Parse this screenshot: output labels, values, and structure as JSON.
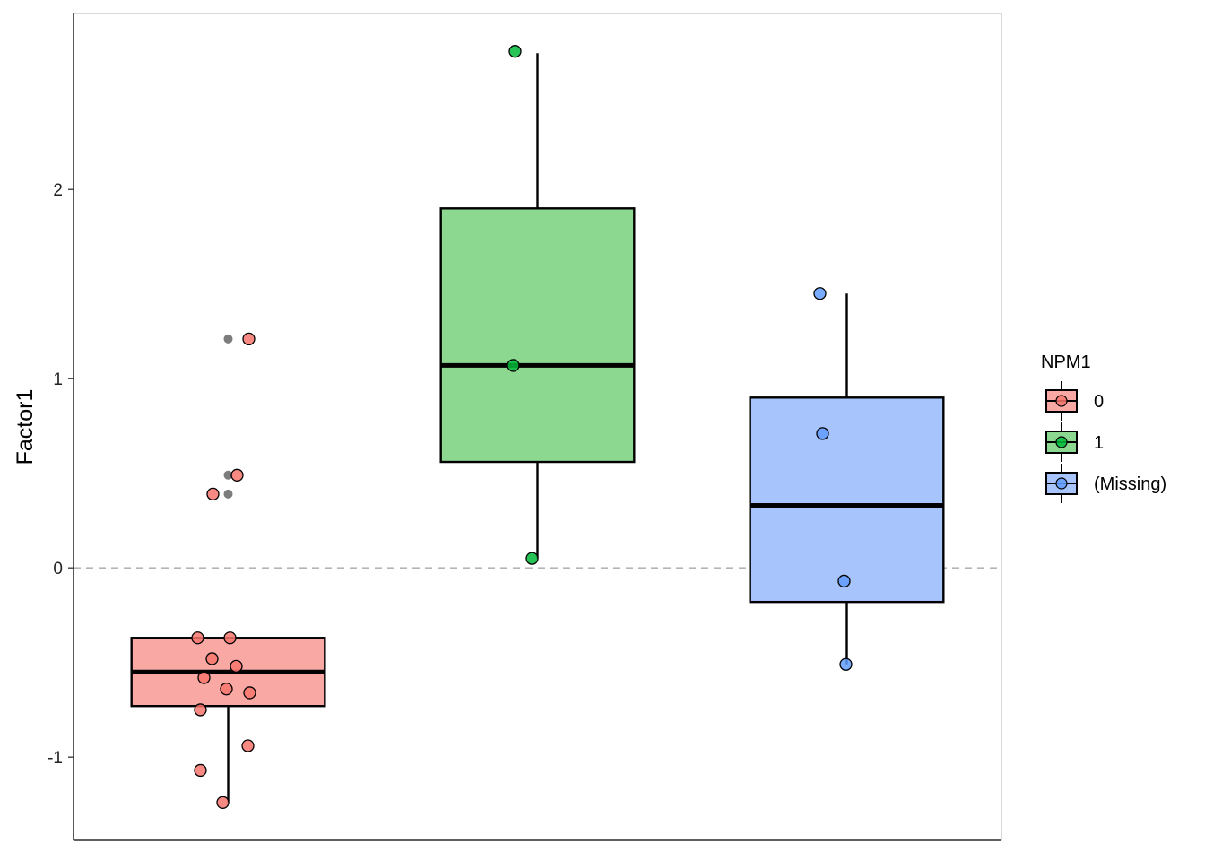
{
  "chart_data": {
    "type": "box",
    "ylabel": "Factor1",
    "xlabel": "",
    "ylim": [
      -1.44,
      2.93
    ],
    "y_ticks": [
      -1,
      0,
      1,
      2
    ],
    "y_tick_labels": [
      "-1",
      "0",
      "1",
      "2"
    ],
    "reference_line": {
      "y": 0,
      "style": "dashed",
      "color": "#888888"
    },
    "grid": false,
    "legend": {
      "title": "NPM1",
      "placement": "right",
      "entries": [
        "0",
        "1",
        "(Missing)"
      ]
    },
    "groups": [
      {
        "label": "0",
        "color": "#f8766d",
        "box_fill": "#f9a8a4",
        "box": {
          "q1": -0.73,
          "median": -0.55,
          "q3": -0.37,
          "whisker_low": -1.24,
          "whisker_high": -0.37
        },
        "points": [
          -0.37,
          -0.37,
          -0.48,
          -0.52,
          -0.58,
          -0.64,
          -0.66,
          -0.75,
          -0.94,
          -1.07,
          -1.24,
          1.21,
          0.49,
          0.39
        ],
        "outliers": [
          1.21,
          0.49,
          0.39
        ]
      },
      {
        "label": "1",
        "color": "#00ba38",
        "box_fill": "#8dd891",
        "box": {
          "q1": 0.56,
          "median": 1.07,
          "q3": 1.9,
          "whisker_low": 0.05,
          "whisker_high": 2.72
        },
        "points": [
          2.73,
          1.07,
          0.05
        ],
        "outliers": []
      },
      {
        "label": "(Missing)",
        "color": "#619cff",
        "box_fill": "#a8c4fd",
        "box": {
          "q1": -0.18,
          "median": 0.33,
          "q3": 0.9,
          "whisker_low": -0.51,
          "whisker_high": 1.45
        },
        "points": [
          1.45,
          0.71,
          -0.07,
          -0.51
        ],
        "outliers": []
      }
    ]
  }
}
